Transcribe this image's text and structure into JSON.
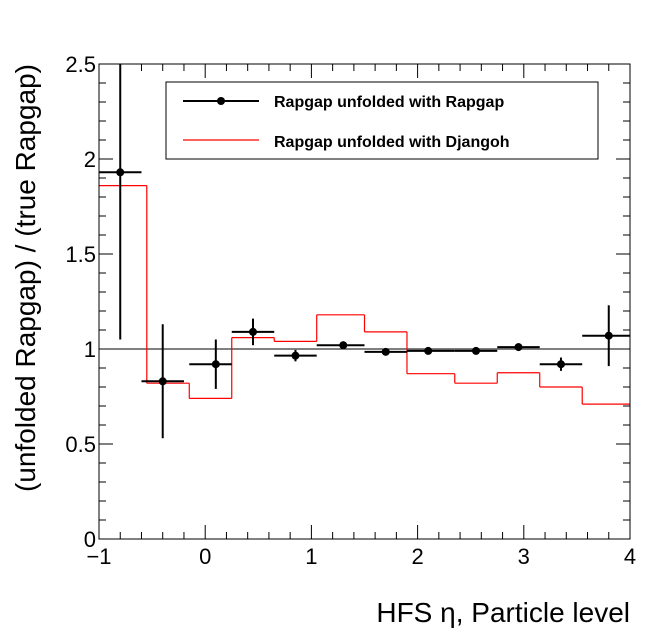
{
  "chart_data": {
    "type": "scatter",
    "title": "",
    "xlabel": "HFS η, Particle level",
    "ylabel": "(unfolded Rapgap) / (true Rapgap)",
    "xlim": [
      -1,
      4
    ],
    "ylim": [
      0,
      2.5
    ],
    "x_ticks": [
      "−1",
      "0",
      "1",
      "2",
      "3",
      "4"
    ],
    "y_ticks": [
      "0",
      "0.5",
      "1",
      "1.5",
      "2",
      "2.5"
    ],
    "reference_line": 1,
    "legend_position": "top-right",
    "series": [
      {
        "name": "Rapgap unfolded with Rapgap",
        "kind": "points-with-errors",
        "color": "#000000",
        "points": [
          {
            "x": -0.8,
            "xlo": -1.0,
            "xhi": -0.6,
            "y": 1.93,
            "ylo": 1.05,
            "yhi": 2.5
          },
          {
            "x": -0.4,
            "xlo": -0.6,
            "xhi": -0.2,
            "y": 0.83,
            "ylo": 0.53,
            "yhi": 1.13
          },
          {
            "x": 0.1,
            "xlo": -0.15,
            "xhi": 0.25,
            "y": 0.92,
            "ylo": 0.79,
            "yhi": 1.05
          },
          {
            "x": 0.45,
            "xlo": 0.25,
            "xhi": 0.65,
            "y": 1.09,
            "ylo": 1.02,
            "yhi": 1.16
          },
          {
            "x": 0.85,
            "xlo": 0.65,
            "xhi": 1.05,
            "y": 0.965,
            "ylo": 0.935,
            "yhi": 0.995
          },
          {
            "x": 1.3,
            "xlo": 1.05,
            "xhi": 1.5,
            "y": 1.02,
            "ylo": 1.0,
            "yhi": 1.04
          },
          {
            "x": 1.7,
            "xlo": 1.5,
            "xhi": 1.9,
            "y": 0.985,
            "ylo": 0.97,
            "yhi": 1.0
          },
          {
            "x": 2.1,
            "xlo": 1.9,
            "xhi": 2.35,
            "y": 0.99,
            "ylo": 0.98,
            "yhi": 1.0
          },
          {
            "x": 2.55,
            "xlo": 2.35,
            "xhi": 2.75,
            "y": 0.99,
            "ylo": 0.98,
            "yhi": 1.0
          },
          {
            "x": 2.95,
            "xlo": 2.75,
            "xhi": 3.15,
            "y": 1.01,
            "ylo": 0.99,
            "yhi": 1.03
          },
          {
            "x": 3.35,
            "xlo": 3.15,
            "xhi": 3.55,
            "y": 0.92,
            "ylo": 0.885,
            "yhi": 0.955
          },
          {
            "x": 3.8,
            "xlo": 3.55,
            "xhi": 4.0,
            "y": 1.07,
            "ylo": 0.91,
            "yhi": 1.23
          }
        ]
      },
      {
        "name": "Rapgap unfolded with Djangoh",
        "kind": "step",
        "color": "#ff0000",
        "bins": [
          {
            "xlo": -1.0,
            "xhi": -0.55,
            "y": 1.86
          },
          {
            "xlo": -0.55,
            "xhi": -0.15,
            "y": 0.82
          },
          {
            "xlo": -0.15,
            "xhi": 0.25,
            "y": 0.74
          },
          {
            "xlo": 0.25,
            "xhi": 0.65,
            "y": 1.06
          },
          {
            "xlo": 0.65,
            "xhi": 1.05,
            "y": 1.04
          },
          {
            "xlo": 1.05,
            "xhi": 1.5,
            "y": 1.18
          },
          {
            "xlo": 1.5,
            "xhi": 1.9,
            "y": 1.09
          },
          {
            "xlo": 1.9,
            "xhi": 2.35,
            "y": 0.87
          },
          {
            "xlo": 2.35,
            "xhi": 2.75,
            "y": 0.82
          },
          {
            "xlo": 2.75,
            "xhi": 3.15,
            "y": 0.875
          },
          {
            "xlo": 3.15,
            "xhi": 3.55,
            "y": 0.8
          },
          {
            "xlo": 3.55,
            "xhi": 4.0,
            "y": 0.71
          }
        ]
      }
    ]
  }
}
